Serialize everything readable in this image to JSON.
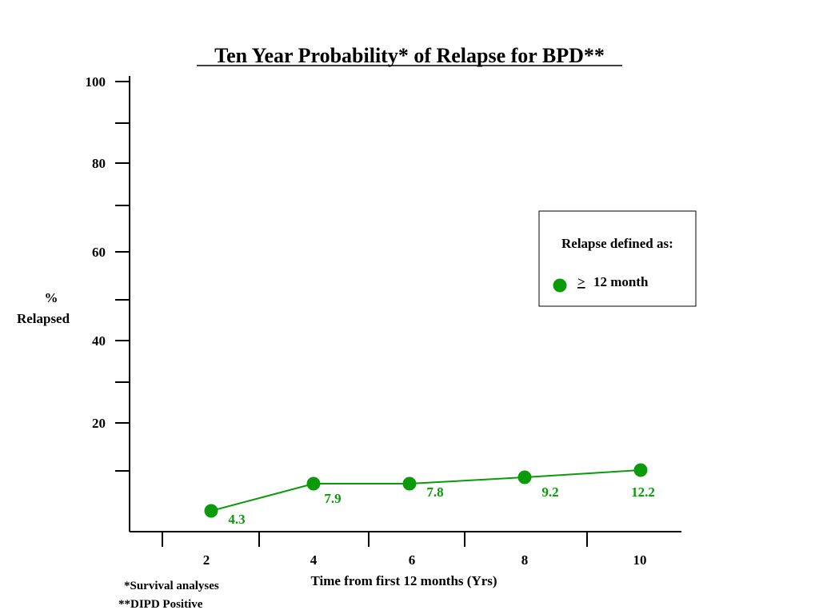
{
  "chart_data": {
    "type": "line",
    "title": "Ten Year Probability* of Relapse for BPD**",
    "xlabel": "Time from first 12 months (Yrs)",
    "ylabel_line1": "%",
    "ylabel_line2": "Relapsed",
    "x_ticks": [
      "2",
      "4",
      "6",
      "8",
      "10"
    ],
    "y_ticks": [
      "100",
      "80",
      "60",
      "40",
      "20"
    ],
    "ylim": [
      0,
      100
    ],
    "grid": false,
    "legend_position": "right",
    "series": [
      {
        "name": "≥ 12 month",
        "color": "#0a9a0a",
        "x": [
          2,
          4,
          6,
          8,
          10
        ],
        "y": [
          4.3,
          7.9,
          7.8,
          9.2,
          12.2
        ],
        "labels": [
          "4.3",
          "7.9",
          "7.8",
          "9.2",
          "12.2"
        ]
      }
    ],
    "legend": {
      "title": "Relapse defined as:",
      "symbol": ">",
      "item_text": "12 month"
    },
    "footnotes": [
      "*Survival analyses",
      "**DIPD Positive"
    ]
  }
}
